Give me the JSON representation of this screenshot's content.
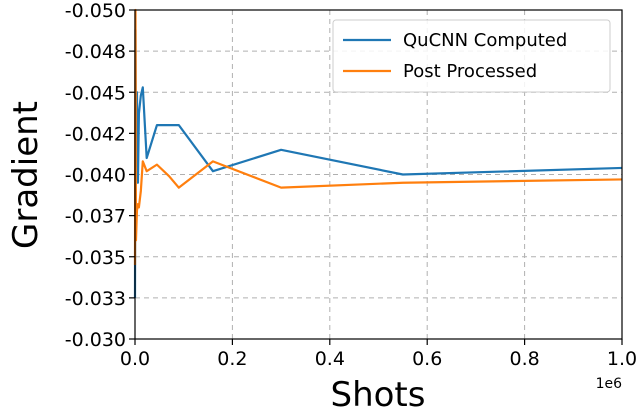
{
  "chart_data": {
    "type": "line",
    "title": "",
    "xlabel": "Shots",
    "ylabel": "Gradient",
    "x_offset_label": "1e6",
    "xlim": [
      0,
      1.0
    ],
    "ylim": [
      -0.03,
      -0.05
    ],
    "x_ticks": [
      0.0,
      0.2,
      0.4,
      0.6,
      0.8,
      1.0
    ],
    "x_tick_labels": [
      "0.0",
      "0.2",
      "0.4",
      "0.6",
      "0.8",
      "1.0"
    ],
    "y_ticks": [
      -0.03,
      -0.033,
      -0.035,
      -0.037,
      -0.04,
      -0.042,
      -0.045,
      -0.048,
      -0.05
    ],
    "y_tick_labels": [
      "-0.030",
      "-0.033",
      "-0.035",
      "-0.037",
      "-0.040",
      "-0.042",
      "-0.045",
      "-0.048",
      "-0.050"
    ],
    "grid": true,
    "legend_position": "top-right",
    "series": [
      {
        "name": "QuCNN Computed",
        "color": "#1f77b4",
        "x": [
          0.0,
          0.001,
          0.002,
          0.004,
          0.006,
          0.008,
          0.012,
          0.016,
          0.024,
          0.045,
          0.07,
          0.09,
          0.16,
          0.3,
          0.55,
          1.0
        ],
        "y": [
          -0.0325,
          -0.0488,
          -0.0405,
          -0.045,
          -0.0395,
          -0.0437,
          -0.0448,
          -0.0453,
          -0.041,
          -0.043,
          -0.043,
          -0.043,
          -0.0402,
          -0.0415,
          -0.04,
          -0.0404
        ]
      },
      {
        "name": "Post Processed",
        "color": "#ff7f0e",
        "x": [
          0.0,
          0.001,
          0.002,
          0.004,
          0.006,
          0.008,
          0.012,
          0.016,
          0.024,
          0.045,
          0.07,
          0.09,
          0.16,
          0.3,
          0.55,
          1.0
        ],
        "y": [
          -0.0345,
          -0.05,
          -0.036,
          -0.0378,
          -0.0382,
          -0.038,
          -0.039,
          -0.0408,
          -0.0402,
          -0.0406,
          -0.0399,
          -0.0392,
          -0.0408,
          -0.0392,
          -0.0395,
          -0.0397
        ]
      }
    ]
  }
}
